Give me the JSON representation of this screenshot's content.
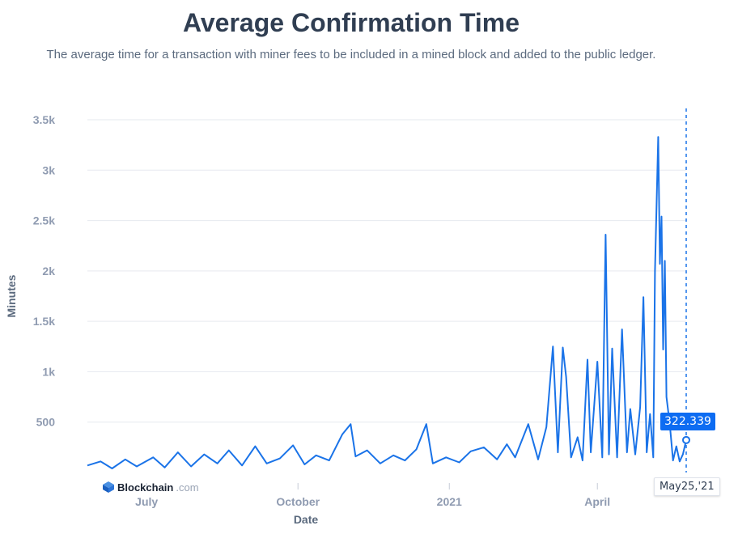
{
  "title": "Average Confirmation Time",
  "subtitle": "The average time for a transaction with miner fees to be included in a mined block and added to the public ledger.",
  "brand": {
    "name": "Blockchain",
    "suffix": ".com"
  },
  "tooltip": {
    "value": "322.339",
    "date": "May25,'21"
  },
  "colors": {
    "line": "#1a73e8",
    "accent": "#0d6cf2",
    "grid": "#e6e9ef"
  },
  "chart_data": {
    "type": "line",
    "title": "Average Confirmation Time",
    "xlabel": "Date",
    "ylabel": "Minutes",
    "ylim": [
      0,
      3500
    ],
    "yticks": [
      500,
      1000,
      1500,
      2000,
      2500,
      3000,
      3500
    ],
    "ytick_labels": [
      "500",
      "1k",
      "1.5k",
      "2k",
      "2.5k",
      "3k",
      "3.5k"
    ],
    "xtick_labels": [
      "July",
      "October",
      "2021",
      "April"
    ],
    "xtick_dates": [
      "2020-07-01",
      "2020-10-01",
      "2021-01-01",
      "2021-04-01"
    ],
    "x_range": [
      "2020-05-26",
      "2021-05-25"
    ],
    "grid": true,
    "series": [
      {
        "points": [
          [
            "2020-05-26",
            70
          ],
          [
            "2020-06-03",
            110
          ],
          [
            "2020-06-10",
            40
          ],
          [
            "2020-06-18",
            130
          ],
          [
            "2020-06-25",
            60
          ],
          [
            "2020-07-05",
            150
          ],
          [
            "2020-07-12",
            50
          ],
          [
            "2020-07-20",
            200
          ],
          [
            "2020-07-28",
            60
          ],
          [
            "2020-08-05",
            180
          ],
          [
            "2020-08-13",
            90
          ],
          [
            "2020-08-20",
            220
          ],
          [
            "2020-08-28",
            70
          ],
          [
            "2020-09-05",
            260
          ],
          [
            "2020-09-12",
            90
          ],
          [
            "2020-09-20",
            140
          ],
          [
            "2020-09-28",
            270
          ],
          [
            "2020-10-05",
            80
          ],
          [
            "2020-10-12",
            170
          ],
          [
            "2020-10-20",
            120
          ],
          [
            "2020-10-28",
            380
          ],
          [
            "2020-11-02",
            480
          ],
          [
            "2020-11-05",
            160
          ],
          [
            "2020-11-12",
            220
          ],
          [
            "2020-11-20",
            90
          ],
          [
            "2020-11-28",
            170
          ],
          [
            "2020-12-05",
            120
          ],
          [
            "2020-12-12",
            230
          ],
          [
            "2020-12-18",
            480
          ],
          [
            "2020-12-22",
            90
          ],
          [
            "2020-12-30",
            150
          ],
          [
            "2021-01-07",
            100
          ],
          [
            "2021-01-14",
            210
          ],
          [
            "2021-01-22",
            250
          ],
          [
            "2021-01-30",
            130
          ],
          [
            "2021-02-05",
            280
          ],
          [
            "2021-02-10",
            150
          ],
          [
            "2021-02-18",
            480
          ],
          [
            "2021-02-24",
            130
          ],
          [
            "2021-03-01",
            450
          ],
          [
            "2021-03-05",
            1250
          ],
          [
            "2021-03-08",
            200
          ],
          [
            "2021-03-11",
            1240
          ],
          [
            "2021-03-13",
            950
          ],
          [
            "2021-03-16",
            150
          ],
          [
            "2021-03-20",
            350
          ],
          [
            "2021-03-23",
            120
          ],
          [
            "2021-03-26",
            1120
          ],
          [
            "2021-03-28",
            200
          ],
          [
            "2021-04-01",
            1100
          ],
          [
            "2021-04-04",
            150
          ],
          [
            "2021-04-06",
            2360
          ],
          [
            "2021-04-08",
            180
          ],
          [
            "2021-04-10",
            1230
          ],
          [
            "2021-04-13",
            150
          ],
          [
            "2021-04-16",
            1420
          ],
          [
            "2021-04-19",
            200
          ],
          [
            "2021-04-21",
            630
          ],
          [
            "2021-04-24",
            180
          ],
          [
            "2021-04-27",
            650
          ],
          [
            "2021-04-29",
            1740
          ],
          [
            "2021-05-01",
            200
          ],
          [
            "2021-05-03",
            580
          ],
          [
            "2021-05-05",
            150
          ],
          [
            "2021-05-06",
            2000
          ],
          [
            "2021-05-08",
            3330
          ],
          [
            "2021-05-09",
            2070
          ],
          [
            "2021-05-10",
            2540
          ],
          [
            "2021-05-11",
            1220
          ],
          [
            "2021-05-12",
            2100
          ],
          [
            "2021-05-13",
            750
          ],
          [
            "2021-05-15",
            480
          ],
          [
            "2021-05-17",
            120
          ],
          [
            "2021-05-19",
            260
          ],
          [
            "2021-05-21",
            110
          ],
          [
            "2021-05-23",
            180
          ],
          [
            "2021-05-25",
            322.339
          ]
        ]
      }
    ]
  }
}
